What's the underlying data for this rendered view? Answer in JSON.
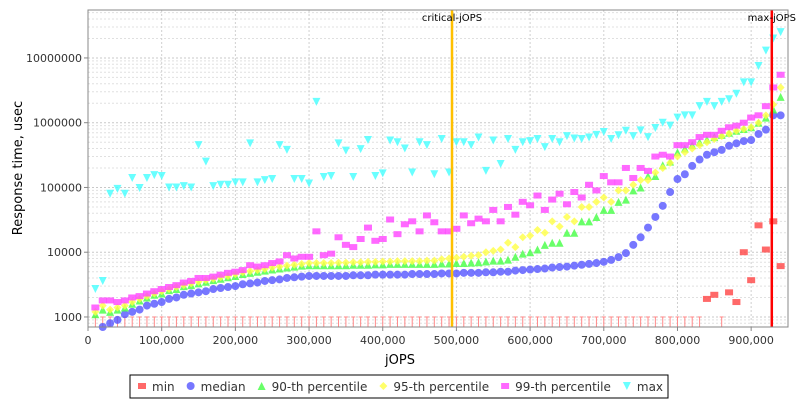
{
  "chart_data": {
    "type": "scatter",
    "xlabel": "jOPS",
    "ylabel": "Response time, usec",
    "yscale": "log",
    "xlim": [
      0,
      950000
    ],
    "ylim": [
      700,
      55000000
    ],
    "grid": true,
    "legend_position": "bottom",
    "x_ticks": [
      0,
      100000,
      200000,
      300000,
      400000,
      500000,
      600000,
      700000,
      800000,
      900000
    ],
    "x_tick_labels": [
      "0",
      "100,000",
      "200,000",
      "300,000",
      "400,000",
      "500,000",
      "600,000",
      "700,000",
      "800,000",
      "900,000"
    ],
    "y_ticks": [
      1000,
      10000,
      100000,
      1000000,
      10000000
    ],
    "y_tick_labels": [
      "1000",
      "10000",
      "100000",
      "1000000",
      "10000000"
    ],
    "markers": [
      {
        "label": "critical-jOPS",
        "x": 494000,
        "color": "#ffc000"
      },
      {
        "label": "max-jOPS",
        "x": 928000,
        "color": "#ff0000"
      }
    ],
    "x_start": 10000,
    "x_step": 10000,
    "series": [
      {
        "name": "min",
        "color": "#ff4444",
        "shape": "square",
        "values": [
          700,
          700,
          700,
          700,
          700,
          700,
          700,
          700,
          700,
          700,
          700,
          700,
          700,
          700,
          700,
          700,
          700,
          700,
          700,
          700,
          700,
          700,
          700,
          700,
          700,
          700,
          700,
          700,
          700,
          700,
          700,
          700,
          700,
          700,
          700,
          700,
          700,
          700,
          700,
          700,
          700,
          700,
          700,
          700,
          700,
          700,
          700,
          700,
          700,
          700,
          700,
          700,
          700,
          700,
          700,
          700,
          700,
          700,
          700,
          700,
          700,
          700,
          700,
          700,
          700,
          700,
          700,
          700,
          700,
          700,
          700,
          700,
          700,
          700,
          700,
          700,
          700,
          700,
          700,
          700,
          700,
          700,
          700,
          1900,
          2200,
          700,
          2400,
          1700,
          10000,
          3700,
          26000,
          11000,
          30000,
          6100
        ]
      },
      {
        "name": "median",
        "color": "#5555ff",
        "shape": "circle",
        "values": [
          600,
          700,
          800,
          900,
          1100,
          1200,
          1300,
          1500,
          1600,
          1700,
          1900,
          2000,
          2200,
          2300,
          2400,
          2500,
          2700,
          2800,
          2900,
          3000,
          3200,
          3300,
          3400,
          3600,
          3700,
          3800,
          4000,
          4100,
          4200,
          4300,
          4300,
          4300,
          4300,
          4300,
          4300,
          4400,
          4400,
          4400,
          4500,
          4500,
          4500,
          4500,
          4500,
          4600,
          4600,
          4600,
          4600,
          4700,
          4700,
          4700,
          4800,
          4800,
          4800,
          4900,
          4900,
          5000,
          5000,
          5200,
          5300,
          5400,
          5500,
          5600,
          5800,
          5900,
          6000,
          6200,
          6400,
          6600,
          6800,
          7100,
          7600,
          8400,
          9700,
          13000,
          17000,
          24000,
          35000,
          52000,
          85000,
          135000,
          160000,
          215000,
          270000,
          320000,
          350000,
          380000,
          440000,
          480000,
          520000,
          540000,
          670000,
          780000,
          1300000,
          1300000
        ]
      },
      {
        "name": "90-th percentile",
        "color": "#44ff44",
        "shape": "triangle",
        "values": [
          1100,
          1300,
          1200,
          1300,
          1400,
          1600,
          1800,
          2000,
          2200,
          2300,
          2600,
          2700,
          3000,
          3100,
          3300,
          3500,
          3700,
          3900,
          4100,
          4300,
          4600,
          4800,
          5000,
          5200,
          5400,
          5600,
          5800,
          6000,
          6200,
          6300,
          6300,
          6300,
          6300,
          6300,
          6300,
          6400,
          6400,
          6400,
          6500,
          6500,
          6600,
          6600,
          6600,
          6600,
          6600,
          6600,
          6600,
          6700,
          6700,
          6800,
          6800,
          6900,
          7000,
          7200,
          7400,
          7400,
          7700,
          8500,
          9500,
          10000,
          11000,
          13000,
          14000,
          14000,
          20000,
          20000,
          30000,
          30000,
          35000,
          45000,
          45000,
          60000,
          65000,
          90000,
          100000,
          150000,
          150000,
          220000,
          250000,
          350000,
          400000,
          450000,
          500000,
          550000,
          600000,
          650000,
          700000,
          750000,
          800000,
          850000,
          1000000,
          1200000,
          1600000,
          2500000
        ]
      },
      {
        "name": "95-th percentile",
        "color": "#ffff44",
        "shape": "diamond",
        "values": [
          1200,
          1500,
          1300,
          1400,
          1500,
          1700,
          1900,
          2100,
          2300,
          2500,
          2700,
          2900,
          3100,
          3300,
          3500,
          3700,
          3900,
          4100,
          4300,
          4600,
          4900,
          5100,
          5300,
          5500,
          5800,
          6000,
          6200,
          6400,
          6600,
          6800,
          6800,
          6800,
          6800,
          6900,
          6900,
          7000,
          7000,
          7100,
          7100,
          7200,
          7200,
          7300,
          7300,
          7300,
          7300,
          7400,
          7400,
          7800,
          8000,
          8200,
          8500,
          8800,
          9000,
          10000,
          10500,
          11000,
          14000,
          12000,
          17000,
          18000,
          22000,
          20000,
          30000,
          25000,
          35000,
          30000,
          50000,
          50000,
          60000,
          70000,
          60000,
          90000,
          90000,
          110000,
          130000,
          130000,
          170000,
          200000,
          240000,
          300000,
          350000,
          400000,
          450000,
          500000,
          560000,
          620000,
          680000,
          750000,
          800000,
          850000,
          1000000,
          1300000,
          1900000,
          3500000
        ]
      },
      {
        "name": "99-th percentile",
        "color": "#ff44ff",
        "shape": "square",
        "values": [
          1400,
          1800,
          1800,
          1700,
          1800,
          2000,
          2100,
          2300,
          2500,
          2700,
          2900,
          3100,
          3400,
          3600,
          4000,
          4000,
          4200,
          4500,
          4800,
          5000,
          5300,
          6300,
          6000,
          6300,
          6800,
          7200,
          9000,
          8000,
          8500,
          8500,
          21000,
          9000,
          9500,
          17000,
          13000,
          12000,
          16000,
          24000,
          15000,
          16000,
          32000,
          19000,
          27000,
          30000,
          21000,
          37000,
          29000,
          21000,
          21000,
          23000,
          37000,
          28000,
          33000,
          30000,
          45000,
          30000,
          50000,
          38000,
          60000,
          53000,
          75000,
          45000,
          65000,
          80000,
          55000,
          85000,
          70000,
          110000,
          90000,
          150000,
          120000,
          120000,
          200000,
          140000,
          200000,
          180000,
          300000,
          320000,
          300000,
          450000,
          450000,
          500000,
          600000,
          650000,
          650000,
          750000,
          850000,
          900000,
          1000000,
          1200000,
          1300000,
          1800000,
          3500000,
          5500000
        ]
      },
      {
        "name": "max",
        "color": "#44ffff",
        "shape": "triangle-down",
        "values": [
          2700,
          3600,
          80000,
          95000,
          80000,
          140000,
          98000,
          140000,
          155000,
          150000,
          100000,
          100000,
          105000,
          100000,
          450000,
          250000,
          105000,
          110000,
          110000,
          120000,
          120000,
          480000,
          120000,
          130000,
          135000,
          450000,
          380000,
          135000,
          135000,
          115000,
          2100000,
          145000,
          150000,
          480000,
          370000,
          145000,
          390000,
          540000,
          150000,
          165000,
          530000,
          500000,
          400000,
          170000,
          500000,
          450000,
          160000,
          560000,
          170000,
          500000,
          500000,
          450000,
          590000,
          180000,
          530000,
          230000,
          560000,
          380000,
          500000,
          520000,
          560000,
          420000,
          560000,
          500000,
          620000,
          570000,
          560000,
          590000,
          650000,
          720000,
          560000,
          640000,
          750000,
          620000,
          760000,
          600000,
          830000,
          1000000,
          900000,
          1200000,
          1300000,
          1300000,
          1800000,
          2100000,
          1800000,
          2100000,
          2300000,
          2800000,
          4200000,
          4200000,
          7500000,
          13000000,
          20000000,
          25000000
        ]
      }
    ]
  }
}
